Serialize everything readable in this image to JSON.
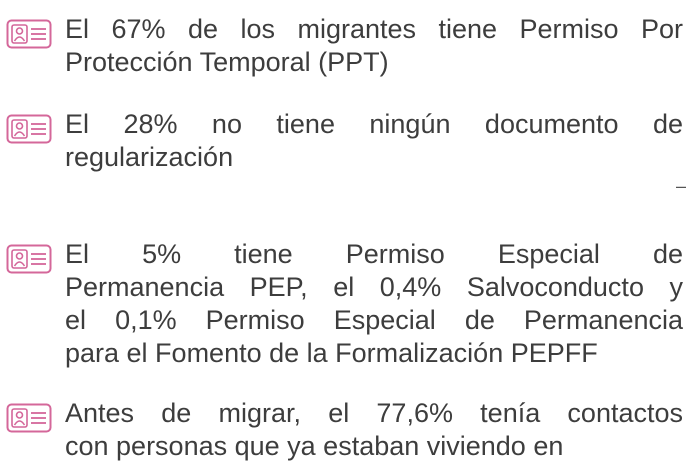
{
  "items": [
    {
      "lines": [
        "El 67% de los migrantes tiene Permiso Por",
        "Protección Temporal (PPT)"
      ]
    },
    {
      "lines": [
        "El 28% no tiene ningún documento de",
        "regularización"
      ]
    },
    {
      "lines": [
        "El 5% tiene Permiso Especial de",
        "Permanencia PEP, el 0,4% Salvoconducto y",
        "el 0,1% Permiso Especial de Permanencia",
        "para el Fomento de la Formalización PEPFF"
      ]
    },
    {
      "lines": [
        "Antes de migrar, el 77,6% tenía contactos",
        "con personas que ya estaban viviendo en"
      ]
    }
  ],
  "marker": "–"
}
